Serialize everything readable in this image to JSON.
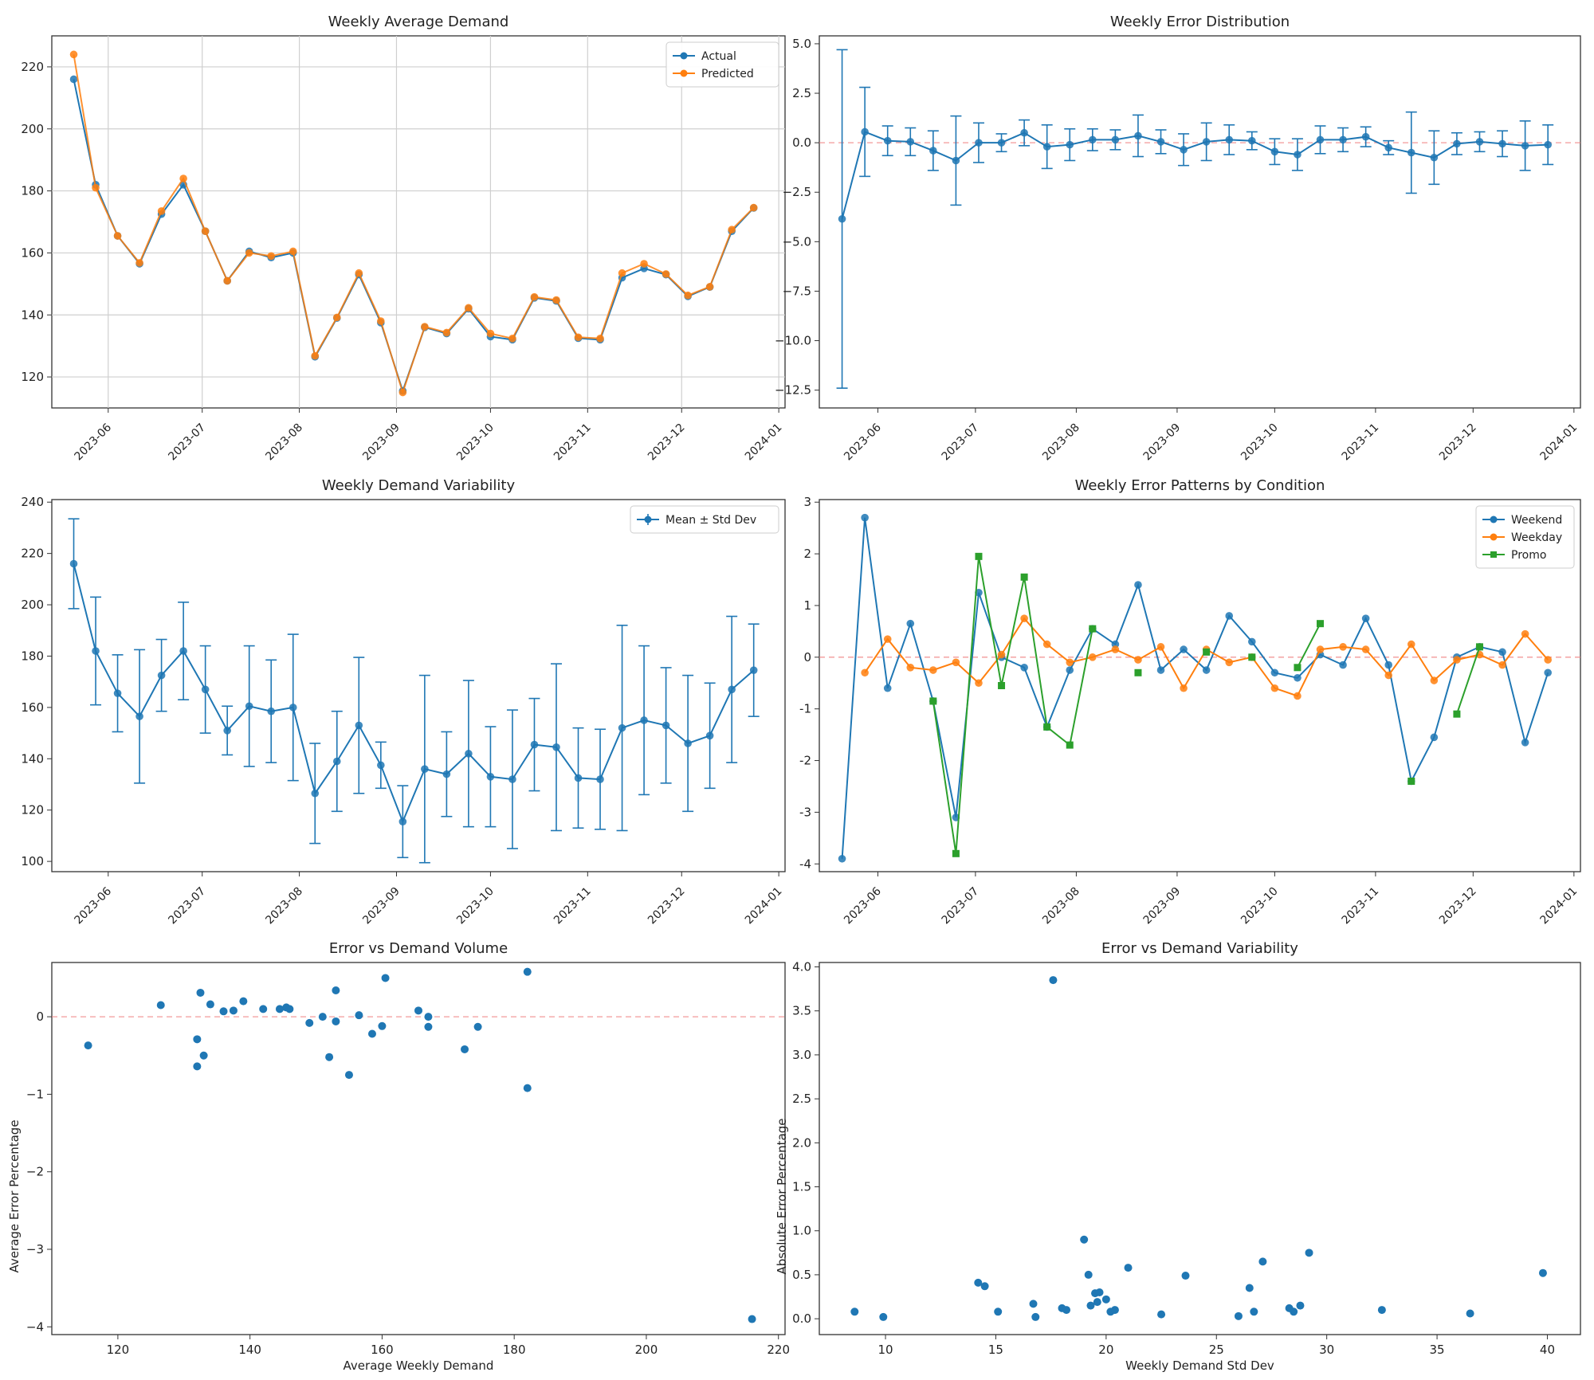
{
  "chart_data": [
    {
      "type": "line",
      "title": "Weekly Average Demand",
      "xlabel": "",
      "ylabel": "",
      "x_tick_labels": [
        "2023-06",
        "2023-07",
        "2023-08",
        "2023-09",
        "2023-10",
        "2023-11",
        "2023-12",
        "2024-01"
      ],
      "y_ticks": [
        120,
        140,
        160,
        180,
        200,
        220
      ],
      "ylim": [
        110,
        230
      ],
      "grid": true,
      "legend": "top-right",
      "dates": [
        "2023-05-21",
        "2023-05-28",
        "2023-06-04",
        "2023-06-11",
        "2023-06-18",
        "2023-06-25",
        "2023-07-02",
        "2023-07-09",
        "2023-07-16",
        "2023-07-23",
        "2023-07-30",
        "2023-08-06",
        "2023-08-13",
        "2023-08-20",
        "2023-08-27",
        "2023-09-03",
        "2023-09-10",
        "2023-09-17",
        "2023-09-24",
        "2023-10-01",
        "2023-10-08",
        "2023-10-15",
        "2023-10-22",
        "2023-10-29",
        "2023-11-05",
        "2023-11-12",
        "2023-11-19",
        "2023-11-26",
        "2023-12-03",
        "2023-12-10",
        "2023-12-17",
        "2023-12-24"
      ],
      "series": [
        {
          "name": "Actual",
          "color": "#1f77b4",
          "values": [
            216,
            182,
            165.5,
            156.5,
            172.5,
            182,
            167,
            151,
            160.5,
            158.5,
            160,
            126.5,
            139,
            153,
            137.5,
            115.5,
            136,
            134,
            142,
            133,
            132,
            145.5,
            144.5,
            132.5,
            132,
            152,
            155,
            153,
            146,
            149,
            167,
            174.5
          ]
        },
        {
          "name": "Predicted",
          "color": "#ff7f0e",
          "values": [
            224,
            181,
            165.5,
            156.8,
            173.5,
            184,
            167,
            151,
            160,
            159,
            160.5,
            126.8,
            139.2,
            153.5,
            138,
            115,
            136.2,
            134.3,
            142.3,
            134,
            132.4,
            145.8,
            144.8,
            132.8,
            132.4,
            153.5,
            156.5,
            153.2,
            146.3,
            149.1,
            167.5,
            174.6
          ]
        }
      ]
    },
    {
      "type": "line",
      "title": "Weekly Error Distribution",
      "xlabel": "",
      "ylabel": "",
      "x_tick_labels": [
        "2023-06",
        "2023-07",
        "2023-08",
        "2023-09",
        "2023-10",
        "2023-11",
        "2023-12",
        "2024-01"
      ],
      "y_tick_labels": [
        "5.0",
        "2.5",
        "0.0",
        "−2.5",
        "−5.0",
        "−7.5",
        "−10.0",
        "−12.5"
      ],
      "y_ticks": [
        5.0,
        2.5,
        0.0,
        -2.5,
        -5.0,
        -7.5,
        -10.0,
        -12.5
      ],
      "ylim": [
        -13.4,
        5.4
      ],
      "grid": false,
      "reference_line": 0,
      "series": [
        {
          "name": "",
          "color": "#1f77b4",
          "values": [
            -3.85,
            0.55,
            0.1,
            0.05,
            -0.4,
            -0.9,
            0.0,
            0.0,
            0.5,
            -0.2,
            -0.1,
            0.15,
            0.15,
            0.35,
            0.05,
            -0.35,
            0.05,
            0.15,
            0.1,
            -0.45,
            -0.6,
            0.15,
            0.15,
            0.3,
            -0.25,
            -0.5,
            -0.75,
            -0.05,
            0.05,
            -0.05,
            -0.15,
            -0.1
          ],
          "errors": [
            8.55,
            2.25,
            0.75,
            0.7,
            1.0,
            2.25,
            1.0,
            0.45,
            0.65,
            1.1,
            0.8,
            0.55,
            0.5,
            1.05,
            0.6,
            0.8,
            0.95,
            0.75,
            0.45,
            0.65,
            0.8,
            0.7,
            0.6,
            0.5,
            0.35,
            2.05,
            1.35,
            0.55,
            0.5,
            0.65,
            1.25,
            1.0
          ]
        }
      ]
    },
    {
      "type": "line",
      "title": "Weekly Demand Variability",
      "xlabel": "",
      "ylabel": "",
      "x_tick_labels": [
        "2023-06",
        "2023-07",
        "2023-08",
        "2023-09",
        "2023-10",
        "2023-11",
        "2023-12",
        "2024-01"
      ],
      "y_ticks": [
        100,
        120,
        140,
        160,
        180,
        200,
        220,
        240
      ],
      "ylim": [
        96,
        241
      ],
      "grid": false,
      "legend": "top-right",
      "series": [
        {
          "name": "Mean ± Std Dev",
          "color": "#1f77b4",
          "values": [
            216,
            182,
            165.5,
            156.5,
            172.5,
            182,
            167,
            151,
            160.5,
            158.5,
            160,
            126.5,
            139,
            153,
            137.5,
            115.5,
            136,
            134,
            142,
            133,
            132,
            145.5,
            144.5,
            132.5,
            132,
            152,
            155,
            153,
            146,
            149,
            167,
            174.5
          ],
          "errors": [
            17.5,
            21,
            15,
            26,
            14,
            19,
            17,
            9.5,
            23.5,
            20,
            28.5,
            19.5,
            19.5,
            26.5,
            9,
            14,
            36.5,
            16.5,
            28.5,
            19.5,
            27,
            18,
            32.5,
            19.5,
            19.5,
            40,
            29,
            22.5,
            26.5,
            20.5,
            28.5,
            18
          ]
        }
      ]
    },
    {
      "type": "line",
      "title": "Weekly Error Patterns by Condition",
      "xlabel": "",
      "ylabel": "",
      "x_tick_labels": [
        "2023-06",
        "2023-07",
        "2023-08",
        "2023-09",
        "2023-10",
        "2023-11",
        "2023-12",
        "2024-01"
      ],
      "y_ticks": [
        -4,
        -3,
        -2,
        -1,
        0,
        1,
        2,
        3
      ],
      "ylim": [
        -4.15,
        3.05
      ],
      "grid": false,
      "legend": "top-right",
      "reference_line": 0,
      "series": [
        {
          "name": "Weekend",
          "color": "#1f77b4",
          "marker": "circle",
          "values": [
            -3.9,
            2.7,
            -0.6,
            0.65,
            -0.85,
            -3.1,
            1.25,
            0.0,
            -0.2,
            -1.35,
            -0.25,
            0.55,
            0.25,
            1.4,
            -0.25,
            0.15,
            -0.25,
            0.8,
            0.3,
            -0.3,
            -0.4,
            0.05,
            -0.15,
            0.75,
            -0.15,
            -2.4,
            -1.55,
            0.0,
            0.2,
            0.1,
            -1.65,
            -0.3
          ]
        },
        {
          "name": "Weekday",
          "color": "#ff7f0e",
          "marker": "circle",
          "values": [
            null,
            -0.3,
            0.35,
            -0.2,
            -0.25,
            -0.1,
            -0.5,
            0.05,
            0.75,
            0.25,
            -0.1,
            0.0,
            0.15,
            -0.05,
            0.2,
            -0.6,
            0.15,
            -0.1,
            0.0,
            -0.6,
            -0.75,
            0.15,
            0.2,
            0.15,
            -0.35,
            0.25,
            -0.45,
            -0.05,
            0.05,
            -0.15,
            0.45,
            -0.05
          ]
        },
        {
          "name": "Promo",
          "color": "#2ca02c",
          "marker": "square",
          "values": [
            null,
            null,
            null,
            null,
            -0.85,
            -3.8,
            1.95,
            -0.55,
            1.55,
            -1.35,
            -1.7,
            0.55,
            null,
            -0.3,
            null,
            null,
            0.1,
            null,
            0.0,
            null,
            -0.2,
            0.65,
            null,
            null,
            null,
            -2.4,
            null,
            -1.1,
            0.2,
            null,
            null,
            null
          ]
        }
      ]
    },
    {
      "type": "scatter",
      "title": "Error vs Demand Volume",
      "xlabel": "Average Weekly Demand",
      "ylabel": "Average Error Percentage",
      "x_ticks": [
        120,
        140,
        160,
        180,
        200,
        220
      ],
      "y_tick_labels": [
        "0",
        "−1",
        "−2",
        "−3",
        "−4"
      ],
      "y_ticks": [
        0,
        -1,
        -2,
        -3,
        -4
      ],
      "xlim": [
        110,
        221
      ],
      "ylim": [
        -4.1,
        0.7
      ],
      "grid": false,
      "reference_line": 0,
      "series": [
        {
          "name": "",
          "color": "#1f77b4",
          "x": [
            216,
            182,
            165.5,
            156.5,
            172.5,
            182,
            167,
            151,
            160.5,
            158.5,
            160,
            126.5,
            139,
            153,
            137.5,
            115.5,
            136,
            134,
            142,
            133,
            132,
            145.5,
            144.5,
            132.5,
            132,
            152,
            155,
            153,
            146,
            149,
            167,
            174.5
          ],
          "y": [
            -3.9,
            0.58,
            0.08,
            0.02,
            -0.42,
            -0.92,
            0.0,
            0.0,
            0.5,
            -0.22,
            -0.12,
            0.15,
            0.2,
            0.34,
            0.08,
            -0.37,
            0.07,
            0.16,
            0.1,
            -0.5,
            -0.64,
            0.12,
            0.1,
            0.31,
            -0.29,
            -0.52,
            -0.75,
            -0.06,
            0.1,
            -0.08,
            -0.13,
            -0.13
          ]
        }
      ]
    },
    {
      "type": "scatter",
      "title": "Error vs Demand Variability",
      "xlabel": "Weekly Demand Std Dev",
      "ylabel": "Absolute Error Percentage",
      "x_ticks": [
        10,
        15,
        20,
        25,
        30,
        35,
        40
      ],
      "y_tick_labels": [
        "0.0",
        "0.5",
        "1.0",
        "1.5",
        "2.0",
        "2.5",
        "3.0",
        "3.5",
        "4.0"
      ],
      "y_ticks": [
        0.0,
        0.5,
        1.0,
        1.5,
        2.0,
        2.5,
        3.0,
        3.5,
        4.0
      ],
      "xlim": [
        7,
        41.5
      ],
      "ylim": [
        -0.18,
        4.05
      ],
      "grid": false,
      "series": [
        {
          "name": "",
          "color": "#1f77b4",
          "x": [
            17.6,
            8.6,
            9.9,
            14.2,
            14.5,
            15.1,
            16.7,
            16.8,
            18.0,
            18.2,
            19.0,
            19.2,
            19.3,
            19.5,
            19.6,
            19.7,
            20.0,
            20.2,
            20.4,
            21.0,
            22.5,
            23.6,
            26.0,
            26.5,
            26.7,
            27.1,
            28.3,
            28.5,
            28.8,
            29.2,
            32.5,
            36.5,
            39.8
          ],
          "y": [
            3.85,
            0.08,
            0.02,
            0.41,
            0.37,
            0.08,
            0.17,
            0.02,
            0.12,
            0.1,
            0.9,
            0.5,
            0.15,
            0.29,
            0.19,
            0.3,
            0.22,
            0.08,
            0.1,
            0.58,
            0.05,
            0.49,
            0.03,
            0.35,
            0.08,
            0.65,
            0.12,
            0.08,
            0.15,
            0.75,
            0.1,
            0.06,
            0.52
          ]
        }
      ]
    }
  ]
}
